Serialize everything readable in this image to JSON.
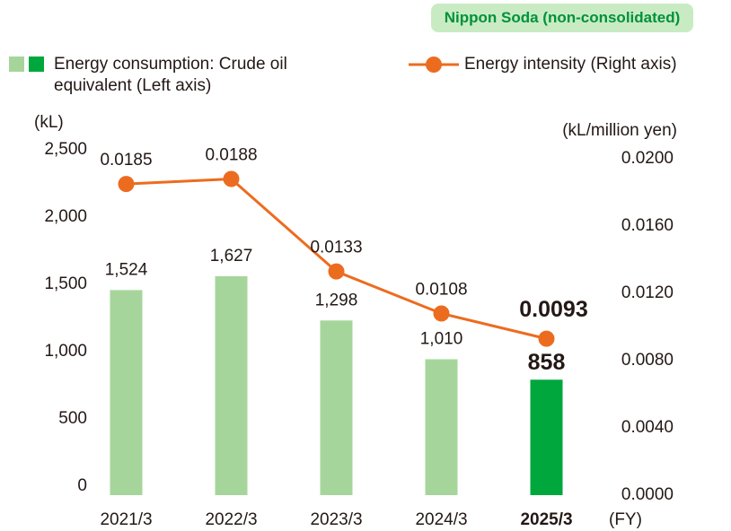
{
  "chart_data": {
    "type": "combo",
    "badge": "Nippon Soda (non-consolidated)",
    "unit_left": "(kL)",
    "unit_right": "(kL/million yen)",
    "x_unit": "(FY)",
    "categories": [
      "2021/3",
      "2022/3",
      "2023/3",
      "2024/3",
      "2025/3"
    ],
    "highlight": "2025/3",
    "series": [
      {
        "name": "Energy consumption: Crude oil equivalent (Left axis)",
        "type": "bar",
        "colors": [
          "#a6d59b",
          "#a6d59b",
          "#a6d59b",
          "#a6d59b",
          "#00a73c"
        ],
        "values": [
          1524,
          1627,
          1298,
          1010,
          858
        ],
        "value_labels": [
          "1,524",
          "1,627",
          "1,298",
          "1,010",
          "858"
        ]
      },
      {
        "name": "Energy intensity (Right axis)",
        "type": "line",
        "axis": "y2",
        "color": "#ec6c1f",
        "values": [
          0.0185,
          0.0188,
          0.0133,
          0.0108,
          0.0093
        ]
      }
    ],
    "ylim": [
      0,
      2500
    ],
    "yticks": [
      0,
      500,
      {
        "value": 1000,
        "label": "1,000"
      },
      {
        "value": 1500,
        "label": "1,500"
      },
      {
        "value": 2000,
        "label": "2,000"
      },
      {
        "value": 2500,
        "label": "2,500"
      }
    ],
    "y2lim": [
      0,
      0.02
    ],
    "y2ticks": [
      {
        "value": 0,
        "label": "0.0000"
      },
      {
        "value": 0.004,
        "label": "0.0040"
      },
      {
        "value": 0.008,
        "label": "0.0080"
      },
      {
        "value": 0.012,
        "label": "0.0120"
      },
      {
        "value": 0.016,
        "label": "0.0160"
      },
      {
        "value": 0.02,
        "label": "0.0200"
      }
    ]
  }
}
